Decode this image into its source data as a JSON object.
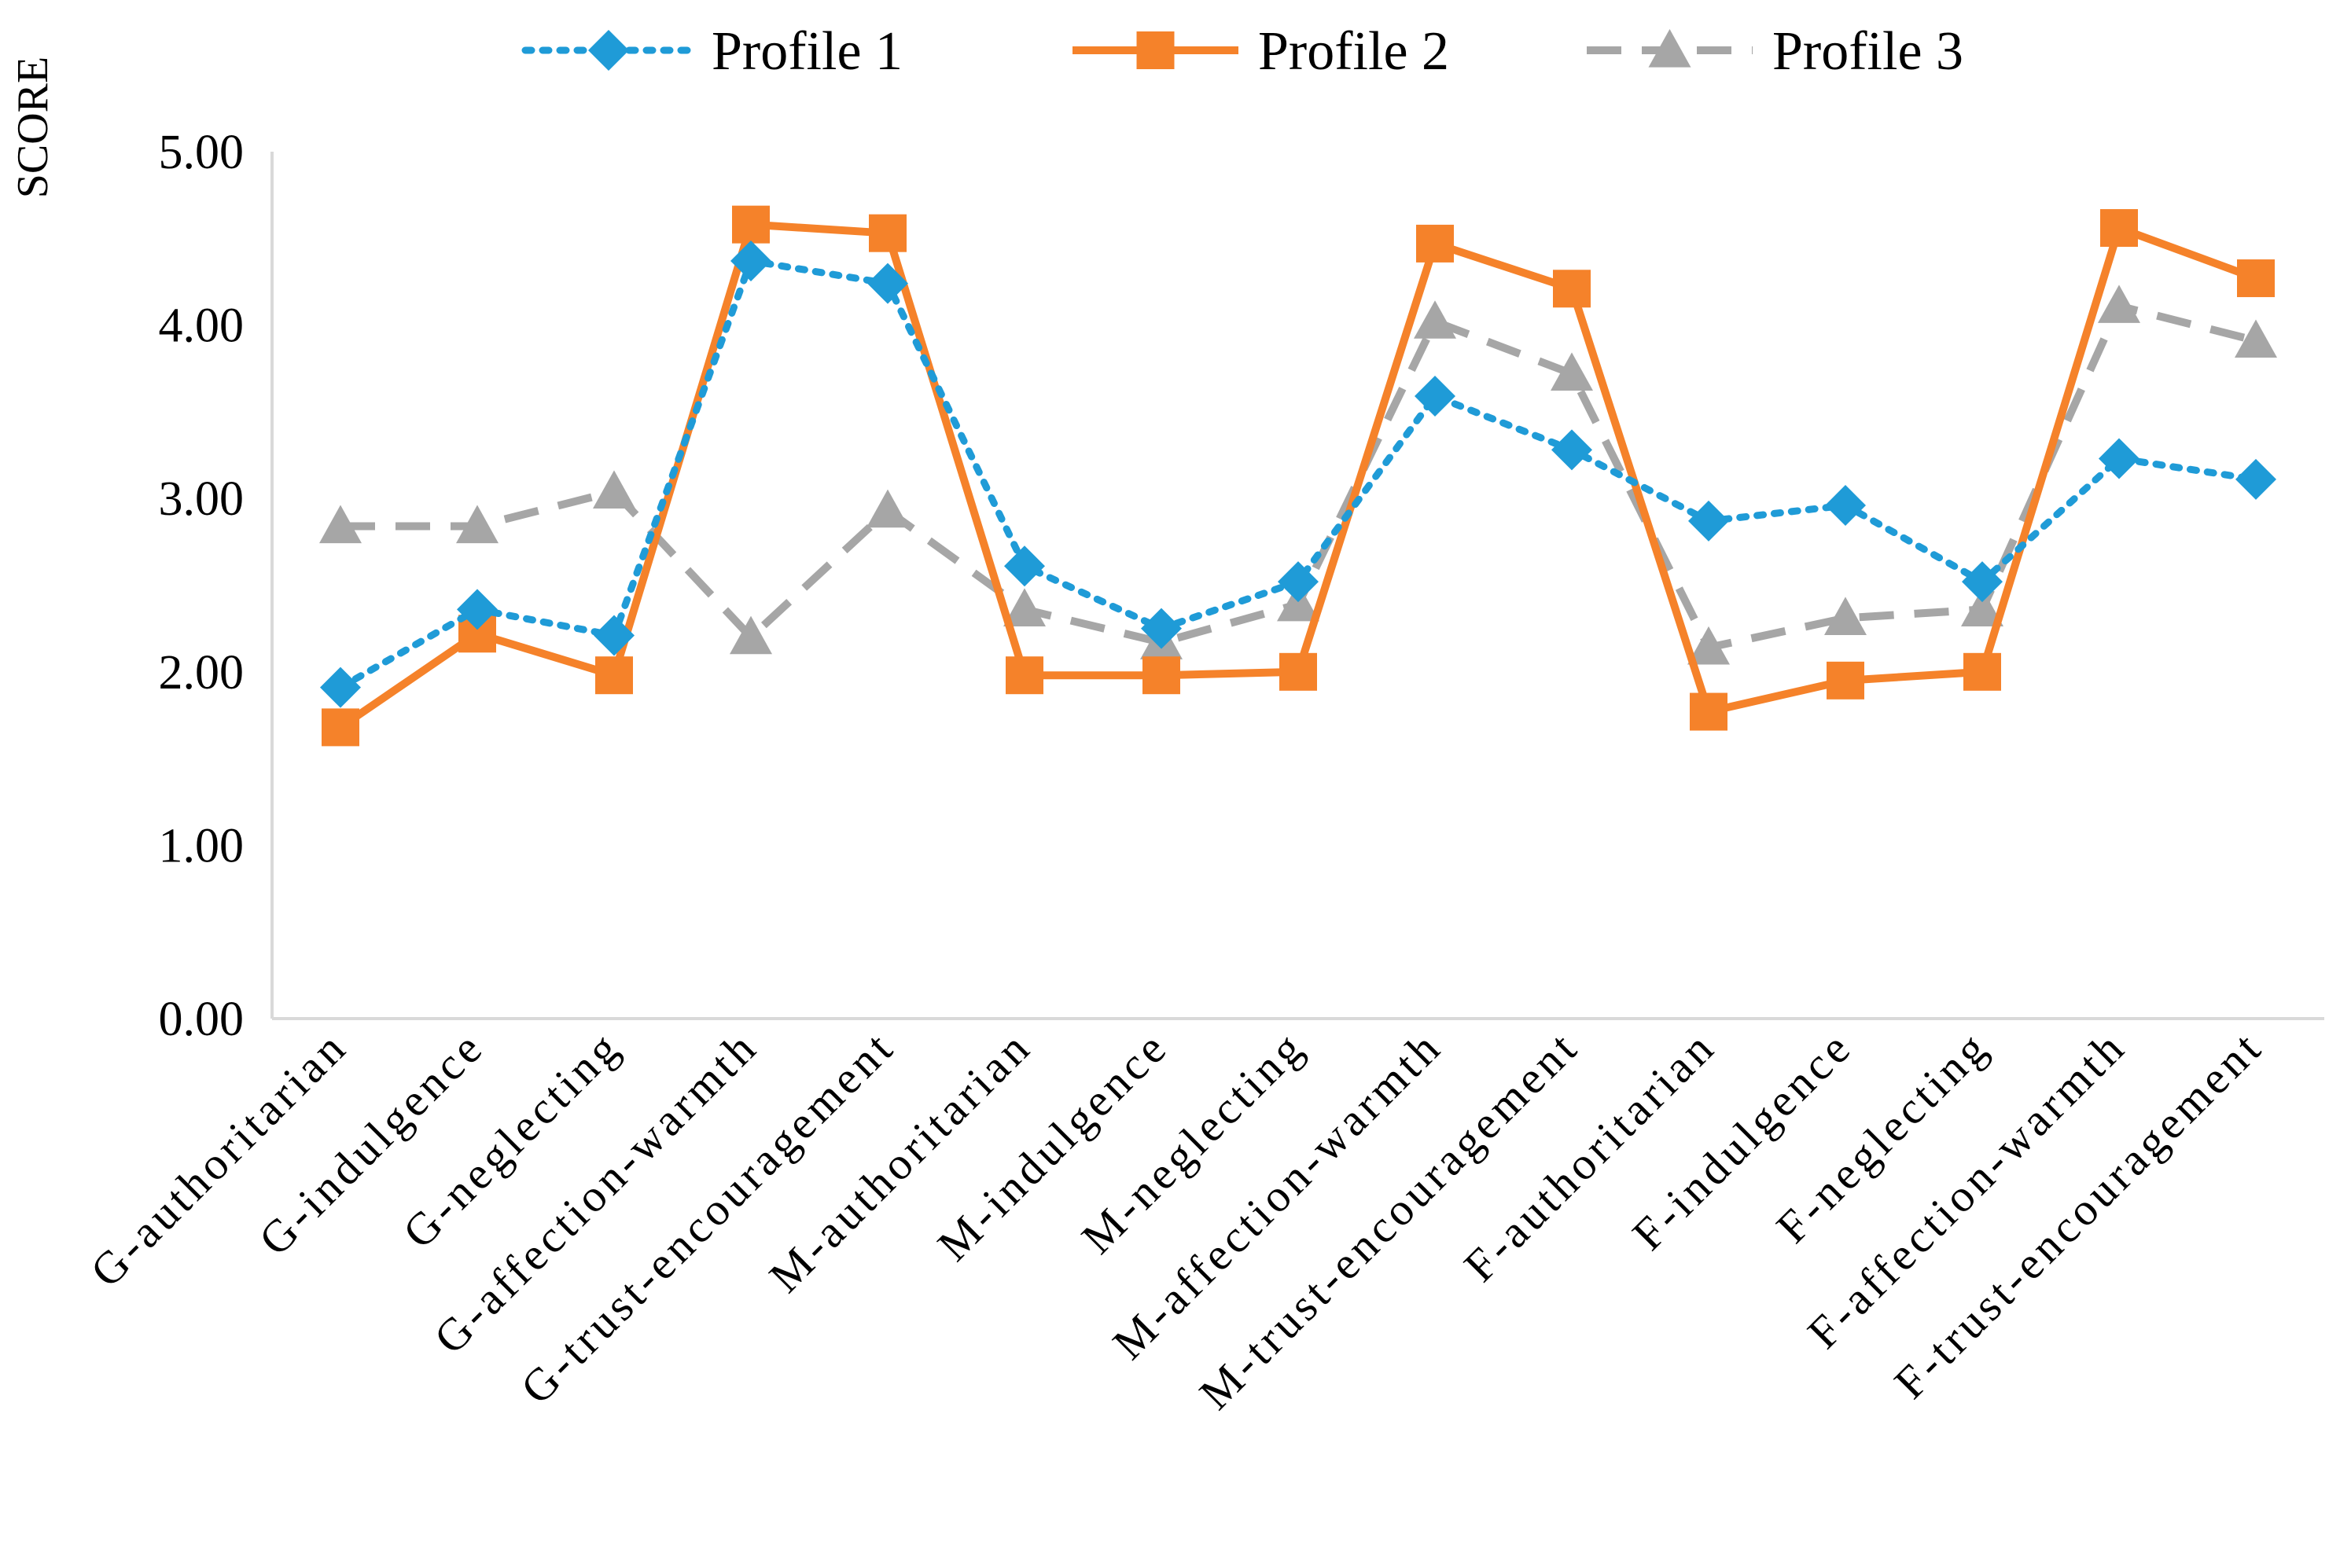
{
  "chart_data": {
    "type": "line",
    "title": "",
    "xlabel": "",
    "ylabel": "SCORE",
    "ylim": [
      0,
      5
    ],
    "yticks": [
      "0.00",
      "1.00",
      "2.00",
      "3.00",
      "4.00",
      "5.00"
    ],
    "grid": false,
    "legend_position": "top",
    "categories": [
      "G-authoritarian",
      "G-indulgence",
      "G-neglecting",
      "G-affection-warmth",
      "G-trust-encouragement",
      "M-authoritarian",
      "M-indulgence",
      "M-neglecting",
      "M-affection-warmth",
      "M-trust-encouragement",
      "F-authoritarian",
      "F-indulgence",
      "F-neglecting",
      "F-affection-warmth",
      "F-trust-encouragement"
    ],
    "series": [
      {
        "name": "Profile 1",
        "color": "#1f9bd7",
        "line_style": "dotted",
        "marker": "diamond",
        "values": [
          1.91,
          2.36,
          2.21,
          4.37,
          4.24,
          2.61,
          2.25,
          2.52,
          3.59,
          3.28,
          2.87,
          2.96,
          2.52,
          3.23,
          3.11
        ]
      },
      {
        "name": "Profile 2",
        "color": "#f5822a",
        "line_style": "solid",
        "marker": "square",
        "values": [
          1.68,
          2.22,
          1.98,
          4.58,
          4.53,
          1.98,
          1.98,
          2.0,
          4.47,
          4.21,
          1.77,
          1.95,
          2.0,
          4.56,
          4.27
        ]
      },
      {
        "name": "Profile 3",
        "color": "#a6a6a6",
        "line_style": "dashed",
        "marker": "triangle",
        "values": [
          2.84,
          2.84,
          3.04,
          2.2,
          2.93,
          2.36,
          2.17,
          2.39,
          4.02,
          3.72,
          2.14,
          2.31,
          2.36,
          4.11,
          3.91
        ]
      }
    ]
  }
}
